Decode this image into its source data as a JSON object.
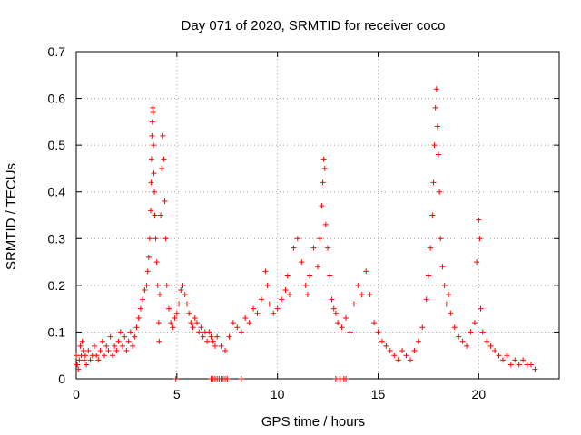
{
  "chart_data": {
    "type": "scatter",
    "title": "Day 071 of 2020, SRMTID for receiver coco",
    "xlabel": "GPS time / hours",
    "ylabel": "SRMTID / TECUs",
    "xlim": [
      0,
      24
    ],
    "ylim": [
      0,
      0.7
    ],
    "xticks": [
      0,
      5,
      10,
      15,
      20
    ],
    "xtick_labels": [
      "0",
      "5",
      "10",
      "15",
      "20"
    ],
    "yticks": [
      0,
      0.1,
      0.2,
      0.3,
      0.4,
      0.5,
      0.6,
      0.7
    ],
    "ytick_labels": [
      "0",
      "0.1",
      "0.2",
      "0.3",
      "0.4",
      "0.5",
      "0.6",
      "0.7"
    ],
    "grid": true,
    "marker": "+",
    "series": [
      {
        "name": "SRMTID",
        "color": "#ff0000",
        "points": [
          [
            0.0,
            0.05
          ],
          [
            0.05,
            0.03
          ],
          [
            0.1,
            0.02
          ],
          [
            0.15,
            0.04
          ],
          [
            0.2,
            0.07
          ],
          [
            0.25,
            0.05
          ],
          [
            0.3,
            0.08
          ],
          [
            0.35,
            0.06
          ],
          [
            0.4,
            0.04
          ],
          [
            0.45,
            0.05
          ],
          [
            0.5,
            0.03
          ],
          [
            0.6,
            0.06
          ],
          [
            0.7,
            0.04
          ],
          [
            0.8,
            0.05
          ],
          [
            0.9,
            0.07
          ],
          [
            1.0,
            0.05
          ],
          [
            1.1,
            0.04
          ],
          [
            1.2,
            0.06
          ],
          [
            1.3,
            0.08
          ],
          [
            1.4,
            0.05
          ],
          [
            1.5,
            0.07
          ],
          [
            1.6,
            0.06
          ],
          [
            1.7,
            0.09
          ],
          [
            1.8,
            0.05
          ],
          [
            1.9,
            0.07
          ],
          [
            2.0,
            0.06
          ],
          [
            2.1,
            0.08
          ],
          [
            2.2,
            0.1
          ],
          [
            2.3,
            0.07
          ],
          [
            2.4,
            0.09
          ],
          [
            2.5,
            0.06
          ],
          [
            2.6,
            0.08
          ],
          [
            2.7,
            0.1
          ],
          [
            2.8,
            0.07
          ],
          [
            2.9,
            0.09
          ],
          [
            3.0,
            0.11
          ],
          [
            3.1,
            0.13
          ],
          [
            3.2,
            0.15
          ],
          [
            3.3,
            0.17
          ],
          [
            3.4,
            0.19
          ],
          [
            3.5,
            0.2
          ],
          [
            3.55,
            0.23
          ],
          [
            3.6,
            0.26
          ],
          [
            3.65,
            0.3
          ],
          [
            3.7,
            0.36
          ],
          [
            3.72,
            0.42
          ],
          [
            3.74,
            0.47
          ],
          [
            3.76,
            0.52
          ],
          [
            3.78,
            0.55
          ],
          [
            3.8,
            0.58
          ],
          [
            3.82,
            0.57
          ],
          [
            3.84,
            0.5
          ],
          [
            3.86,
            0.44
          ],
          [
            3.88,
            0.4
          ],
          [
            3.9,
            0.35
          ],
          [
            3.95,
            0.3
          ],
          [
            4.0,
            0.25
          ],
          [
            4.05,
            0.2
          ],
          [
            4.1,
            0.12
          ],
          [
            4.12,
            0.08
          ],
          [
            4.15,
            0.18
          ],
          [
            4.2,
            0.35
          ],
          [
            4.25,
            0.45
          ],
          [
            4.3,
            0.52
          ],
          [
            4.35,
            0.47
          ],
          [
            4.4,
            0.38
          ],
          [
            4.45,
            0.3
          ],
          [
            4.5,
            0.2
          ],
          [
            4.6,
            0.15
          ],
          [
            4.7,
            0.12
          ],
          [
            4.8,
            0.11
          ],
          [
            4.9,
            0.13
          ],
          [
            5.0,
            0.14
          ],
          [
            5.1,
            0.16
          ],
          [
            5.2,
            0.19
          ],
          [
            5.3,
            0.2
          ],
          [
            5.4,
            0.18
          ],
          [
            5.5,
            0.16
          ],
          [
            5.6,
            0.14
          ],
          [
            5.7,
            0.12
          ],
          [
            5.8,
            0.11
          ],
          [
            5.9,
            0.13
          ],
          [
            6.0,
            0.12
          ],
          [
            6.1,
            0.1
          ],
          [
            6.2,
            0.11
          ],
          [
            6.3,
            0.09
          ],
          [
            6.4,
            0.1
          ],
          [
            6.5,
            0.08
          ],
          [
            6.6,
            0.1
          ],
          [
            6.7,
            0.09
          ],
          [
            6.8,
            0.08
          ],
          [
            6.9,
            0.07
          ],
          [
            7.0,
            0.09
          ],
          [
            7.2,
            0.07
          ],
          [
            7.4,
            0.06
          ],
          [
            7.6,
            0.09
          ],
          [
            7.8,
            0.12
          ],
          [
            8.0,
            0.11
          ],
          [
            8.2,
            0.1
          ],
          [
            8.4,
            0.13
          ],
          [
            8.6,
            0.12
          ],
          [
            8.8,
            0.15
          ],
          [
            9.0,
            0.14
          ],
          [
            9.2,
            0.17
          ],
          [
            9.4,
            0.23
          ],
          [
            9.5,
            0.2
          ],
          [
            9.6,
            0.16
          ],
          [
            9.8,
            0.14
          ],
          [
            10.0,
            0.15
          ],
          [
            10.2,
            0.17
          ],
          [
            10.4,
            0.19
          ],
          [
            10.5,
            0.22
          ],
          [
            10.6,
            0.18
          ],
          [
            10.8,
            0.28
          ],
          [
            11.0,
            0.3
          ],
          [
            11.2,
            0.25
          ],
          [
            11.4,
            0.2
          ],
          [
            11.5,
            0.18
          ],
          [
            11.6,
            0.22
          ],
          [
            11.8,
            0.28
          ],
          [
            12.0,
            0.24
          ],
          [
            12.1,
            0.3
          ],
          [
            12.2,
            0.37
          ],
          [
            12.25,
            0.42
          ],
          [
            12.3,
            0.47
          ],
          [
            12.35,
            0.45
          ],
          [
            12.4,
            0.33
          ],
          [
            12.5,
            0.28
          ],
          [
            12.6,
            0.22
          ],
          [
            12.7,
            0.17
          ],
          [
            12.8,
            0.15
          ],
          [
            12.9,
            0.14
          ],
          [
            13.0,
            0.12
          ],
          [
            13.2,
            0.11
          ],
          [
            13.4,
            0.13
          ],
          [
            13.6,
            0.1
          ],
          [
            13.8,
            0.16
          ],
          [
            14.0,
            0.2
          ],
          [
            14.2,
            0.18
          ],
          [
            14.4,
            0.23
          ],
          [
            14.6,
            0.18
          ],
          [
            14.8,
            0.12
          ],
          [
            15.0,
            0.1
          ],
          [
            15.2,
            0.08
          ],
          [
            15.4,
            0.07
          ],
          [
            15.6,
            0.06
          ],
          [
            15.8,
            0.05
          ],
          [
            16.0,
            0.04
          ],
          [
            16.2,
            0.06
          ],
          [
            16.4,
            0.05
          ],
          [
            16.6,
            0.04
          ],
          [
            16.8,
            0.06
          ],
          [
            17.0,
            0.08
          ],
          [
            17.2,
            0.11
          ],
          [
            17.4,
            0.17
          ],
          [
            17.5,
            0.22
          ],
          [
            17.6,
            0.28
          ],
          [
            17.7,
            0.35
          ],
          [
            17.75,
            0.42
          ],
          [
            17.8,
            0.5
          ],
          [
            17.85,
            0.58
          ],
          [
            17.9,
            0.62
          ],
          [
            17.95,
            0.54
          ],
          [
            18.0,
            0.48
          ],
          [
            18.05,
            0.4
          ],
          [
            18.1,
            0.3
          ],
          [
            18.2,
            0.24
          ],
          [
            18.3,
            0.2
          ],
          [
            18.4,
            0.16
          ],
          [
            18.5,
            0.18
          ],
          [
            18.6,
            0.14
          ],
          [
            18.8,
            0.11
          ],
          [
            19.0,
            0.09
          ],
          [
            19.2,
            0.08
          ],
          [
            19.4,
            0.07
          ],
          [
            19.6,
            0.1
          ],
          [
            19.8,
            0.12
          ],
          [
            19.9,
            0.25
          ],
          [
            20.0,
            0.34
          ],
          [
            20.05,
            0.3
          ],
          [
            20.1,
            0.15
          ],
          [
            20.2,
            0.1
          ],
          [
            20.4,
            0.08
          ],
          [
            20.6,
            0.07
          ],
          [
            20.8,
            0.06
          ],
          [
            21.0,
            0.05
          ],
          [
            21.2,
            0.04
          ],
          [
            21.4,
            0.05
          ],
          [
            21.6,
            0.03
          ],
          [
            21.8,
            0.04
          ],
          [
            22.0,
            0.03
          ],
          [
            22.2,
            0.04
          ],
          [
            22.4,
            0.03
          ],
          [
            22.6,
            0.03
          ],
          [
            22.8,
            0.02
          ],
          [
            4.95,
            0.0
          ],
          [
            6.7,
            0.0
          ],
          [
            6.8,
            0.0
          ],
          [
            6.9,
            0.0
          ],
          [
            7.0,
            0.0
          ],
          [
            7.1,
            0.0
          ],
          [
            7.2,
            0.0
          ],
          [
            7.3,
            0.0
          ],
          [
            7.4,
            0.0
          ],
          [
            7.5,
            0.0
          ],
          [
            8.2,
            0.0
          ],
          [
            12.9,
            0.0
          ],
          [
            13.1,
            0.0
          ],
          [
            13.3,
            0.0
          ],
          [
            13.4,
            0.0
          ]
        ]
      }
    ]
  }
}
